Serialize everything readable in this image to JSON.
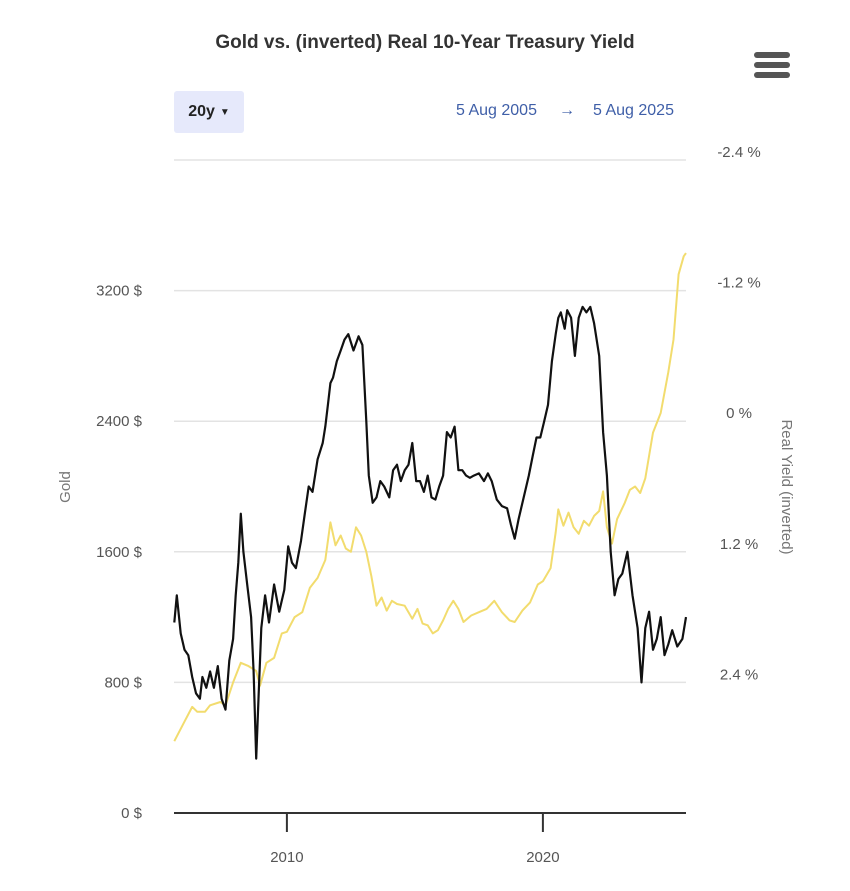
{
  "chart_data": {
    "type": "line",
    "title": "Gold vs. (inverted) Real 10-Year Treasury Yield",
    "range_button": "20y",
    "range_start": "5 Aug 2005",
    "range_arrow": "→",
    "range_end": "5 Aug 2025",
    "xlim": [
      2005.59,
      2025.59
    ],
    "x_ticks": [
      2010,
      2020
    ],
    "y_left": {
      "label": "Gold",
      "ylim": [
        0,
        4000
      ],
      "ticks": [
        0,
        800,
        1600,
        2400,
        3200
      ],
      "tick_labels": [
        "0 $",
        "800 $",
        "1600 $",
        "2400 $",
        "3200 $"
      ]
    },
    "y_right": {
      "label": "Real Yield (inverted)",
      "inverted": true,
      "range": [
        -2.4,
        3.6
      ],
      "ticks": [
        -2.4,
        -1.2,
        0,
        1.2,
        2.4
      ],
      "tick_labels": [
        "-2.4 %",
        "-1.2 %",
        "0 %",
        "1.2 %",
        "2.4 %"
      ]
    },
    "grid": true,
    "series": [
      {
        "axis": "left",
        "color": "#f2dc6e",
        "points": [
          [
            2005.6,
            440
          ],
          [
            2006.0,
            560
          ],
          [
            2006.3,
            650
          ],
          [
            2006.5,
            620
          ],
          [
            2006.8,
            620
          ],
          [
            2007.0,
            660
          ],
          [
            2007.4,
            680
          ],
          [
            2007.6,
            660
          ],
          [
            2007.9,
            800
          ],
          [
            2008.2,
            920
          ],
          [
            2008.5,
            900
          ],
          [
            2008.8,
            870
          ],
          [
            2008.95,
            780
          ],
          [
            2009.2,
            920
          ],
          [
            2009.5,
            950
          ],
          [
            2009.8,
            1100
          ],
          [
            2010.0,
            1110
          ],
          [
            2010.3,
            1200
          ],
          [
            2010.6,
            1230
          ],
          [
            2010.9,
            1380
          ],
          [
            2011.2,
            1440
          ],
          [
            2011.5,
            1550
          ],
          [
            2011.7,
            1780
          ],
          [
            2011.9,
            1640
          ],
          [
            2012.1,
            1700
          ],
          [
            2012.3,
            1620
          ],
          [
            2012.5,
            1600
          ],
          [
            2012.7,
            1750
          ],
          [
            2012.9,
            1700
          ],
          [
            2013.1,
            1600
          ],
          [
            2013.3,
            1450
          ],
          [
            2013.5,
            1270
          ],
          [
            2013.7,
            1320
          ],
          [
            2013.9,
            1240
          ],
          [
            2014.1,
            1300
          ],
          [
            2014.3,
            1280
          ],
          [
            2014.6,
            1270
          ],
          [
            2014.9,
            1190
          ],
          [
            2015.1,
            1250
          ],
          [
            2015.3,
            1160
          ],
          [
            2015.5,
            1150
          ],
          [
            2015.7,
            1100
          ],
          [
            2015.9,
            1120
          ],
          [
            2016.1,
            1180
          ],
          [
            2016.3,
            1250
          ],
          [
            2016.5,
            1300
          ],
          [
            2016.7,
            1250
          ],
          [
            2016.9,
            1170
          ],
          [
            2017.2,
            1210
          ],
          [
            2017.5,
            1230
          ],
          [
            2017.8,
            1250
          ],
          [
            2018.1,
            1300
          ],
          [
            2018.4,
            1230
          ],
          [
            2018.7,
            1180
          ],
          [
            2018.9,
            1170
          ],
          [
            2019.2,
            1240
          ],
          [
            2019.5,
            1290
          ],
          [
            2019.8,
            1400
          ],
          [
            2020.0,
            1420
          ],
          [
            2020.3,
            1500
          ],
          [
            2020.5,
            1720
          ],
          [
            2020.6,
            1860
          ],
          [
            2020.8,
            1760
          ],
          [
            2021.0,
            1840
          ],
          [
            2021.2,
            1750
          ],
          [
            2021.4,
            1710
          ],
          [
            2021.6,
            1790
          ],
          [
            2021.8,
            1760
          ],
          [
            2022.0,
            1820
          ],
          [
            2022.2,
            1850
          ],
          [
            2022.35,
            1970
          ],
          [
            2022.5,
            1750
          ],
          [
            2022.7,
            1650
          ],
          [
            2022.9,
            1800
          ],
          [
            2023.2,
            1900
          ],
          [
            2023.4,
            1980
          ],
          [
            2023.6,
            2000
          ],
          [
            2023.8,
            1960
          ],
          [
            2024.0,
            2050
          ],
          [
            2024.3,
            2330
          ],
          [
            2024.6,
            2450
          ],
          [
            2024.9,
            2700
          ],
          [
            2025.1,
            2900
          ],
          [
            2025.3,
            3300
          ],
          [
            2025.5,
            3410
          ],
          [
            2025.59,
            3430
          ]
        ]
      },
      {
        "axis": "right",
        "color": "#111111",
        "points": [
          [
            2005.6,
            1.85
          ],
          [
            2005.7,
            1.6
          ],
          [
            2005.85,
            1.95
          ],
          [
            2006.0,
            2.1
          ],
          [
            2006.15,
            2.15
          ],
          [
            2006.3,
            2.35
          ],
          [
            2006.45,
            2.5
          ],
          [
            2006.6,
            2.55
          ],
          [
            2006.7,
            2.35
          ],
          [
            2006.85,
            2.45
          ],
          [
            2007.0,
            2.3
          ],
          [
            2007.15,
            2.45
          ],
          [
            2007.3,
            2.25
          ],
          [
            2007.45,
            2.55
          ],
          [
            2007.6,
            2.65
          ],
          [
            2007.75,
            2.2
          ],
          [
            2007.9,
            2.0
          ],
          [
            2008.0,
            1.6
          ],
          [
            2008.1,
            1.3
          ],
          [
            2008.2,
            0.85
          ],
          [
            2008.3,
            1.2
          ],
          [
            2008.45,
            1.5
          ],
          [
            2008.6,
            1.8
          ],
          [
            2008.7,
            2.3
          ],
          [
            2008.8,
            3.1
          ],
          [
            2008.9,
            2.5
          ],
          [
            2009.0,
            1.9
          ],
          [
            2009.15,
            1.6
          ],
          [
            2009.3,
            1.85
          ],
          [
            2009.5,
            1.5
          ],
          [
            2009.7,
            1.75
          ],
          [
            2009.9,
            1.55
          ],
          [
            2010.05,
            1.15
          ],
          [
            2010.2,
            1.3
          ],
          [
            2010.35,
            1.35
          ],
          [
            2010.55,
            1.1
          ],
          [
            2010.7,
            0.85
          ],
          [
            2010.85,
            0.6
          ],
          [
            2011.0,
            0.65
          ],
          [
            2011.2,
            0.35
          ],
          [
            2011.4,
            0.2
          ],
          [
            2011.5,
            0.05
          ],
          [
            2011.6,
            -0.15
          ],
          [
            2011.7,
            -0.35
          ],
          [
            2011.8,
            -0.4
          ],
          [
            2011.95,
            -0.55
          ],
          [
            2012.1,
            -0.65
          ],
          [
            2012.25,
            -0.75
          ],
          [
            2012.4,
            -0.8
          ],
          [
            2012.6,
            -0.65
          ],
          [
            2012.8,
            -0.78
          ],
          [
            2012.95,
            -0.7
          ],
          [
            2013.1,
            0.0
          ],
          [
            2013.2,
            0.5
          ],
          [
            2013.35,
            0.75
          ],
          [
            2013.5,
            0.7
          ],
          [
            2013.65,
            0.55
          ],
          [
            2013.8,
            0.6
          ],
          [
            2014.0,
            0.7
          ],
          [
            2014.15,
            0.45
          ],
          [
            2014.3,
            0.4
          ],
          [
            2014.45,
            0.55
          ],
          [
            2014.6,
            0.45
          ],
          [
            2014.75,
            0.4
          ],
          [
            2014.9,
            0.2
          ],
          [
            2015.05,
            0.55
          ],
          [
            2015.2,
            0.55
          ],
          [
            2015.35,
            0.65
          ],
          [
            2015.5,
            0.5
          ],
          [
            2015.65,
            0.7
          ],
          [
            2015.8,
            0.72
          ],
          [
            2015.95,
            0.6
          ],
          [
            2016.1,
            0.5
          ],
          [
            2016.25,
            0.1
          ],
          [
            2016.4,
            0.15
          ],
          [
            2016.55,
            0.05
          ],
          [
            2016.7,
            0.45
          ],
          [
            2016.85,
            0.45
          ],
          [
            2017.0,
            0.5
          ],
          [
            2017.15,
            0.52
          ],
          [
            2017.3,
            0.5
          ],
          [
            2017.5,
            0.48
          ],
          [
            2017.7,
            0.55
          ],
          [
            2017.85,
            0.48
          ],
          [
            2018.0,
            0.55
          ],
          [
            2018.2,
            0.72
          ],
          [
            2018.4,
            0.78
          ],
          [
            2018.6,
            0.8
          ],
          [
            2018.75,
            0.95
          ],
          [
            2018.9,
            1.08
          ],
          [
            2019.05,
            0.9
          ],
          [
            2019.25,
            0.7
          ],
          [
            2019.45,
            0.5
          ],
          [
            2019.6,
            0.32
          ],
          [
            2019.75,
            0.15
          ],
          [
            2019.9,
            0.15
          ],
          [
            2020.05,
            0.0
          ],
          [
            2020.2,
            -0.15
          ],
          [
            2020.35,
            -0.55
          ],
          [
            2020.5,
            -0.8
          ],
          [
            2020.6,
            -0.95
          ],
          [
            2020.7,
            -1.0
          ],
          [
            2020.85,
            -0.85
          ],
          [
            2020.95,
            -1.02
          ],
          [
            2021.1,
            -0.95
          ],
          [
            2021.25,
            -0.6
          ],
          [
            2021.4,
            -0.95
          ],
          [
            2021.55,
            -1.05
          ],
          [
            2021.7,
            -1.0
          ],
          [
            2021.85,
            -1.05
          ],
          [
            2022.0,
            -0.9
          ],
          [
            2022.2,
            -0.6
          ],
          [
            2022.35,
            0.1
          ],
          [
            2022.5,
            0.5
          ],
          [
            2022.65,
            1.2
          ],
          [
            2022.8,
            1.6
          ],
          [
            2022.95,
            1.45
          ],
          [
            2023.1,
            1.4
          ],
          [
            2023.3,
            1.2
          ],
          [
            2023.5,
            1.6
          ],
          [
            2023.7,
            1.9
          ],
          [
            2023.85,
            2.4
          ],
          [
            2024.0,
            1.9
          ],
          [
            2024.15,
            1.75
          ],
          [
            2024.3,
            2.1
          ],
          [
            2024.45,
            2.0
          ],
          [
            2024.6,
            1.8
          ],
          [
            2024.75,
            2.15
          ],
          [
            2024.9,
            2.05
          ],
          [
            2025.05,
            1.92
          ],
          [
            2025.25,
            2.07
          ],
          [
            2025.45,
            2.0
          ],
          [
            2025.59,
            1.8
          ]
        ]
      }
    ]
  }
}
